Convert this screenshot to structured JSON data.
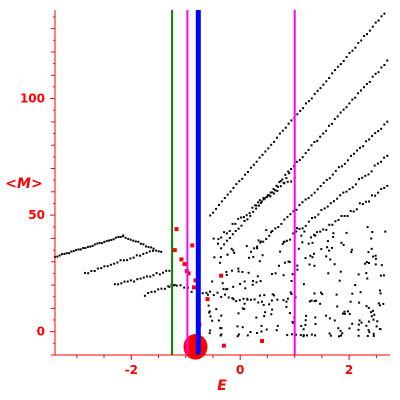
{
  "chart_data": {
    "type": "scatter",
    "title": "",
    "xlabel": "E",
    "ylabel": "<M>",
    "xlim": [
      -3.4,
      2.75
    ],
    "ylim": [
      -10,
      138
    ],
    "x_ticks": [
      -2,
      0,
      2
    ],
    "x_tick_labels": [
      "-2",
      "0",
      "2"
    ],
    "y_ticks": [
      0,
      50,
      100
    ],
    "y_tick_labels": [
      "0",
      "50",
      "100"
    ],
    "grid": false,
    "legend": "none",
    "colors": {
      "axis": "#ff0000",
      "scatter": "#000000",
      "highlight": "#ff0000",
      "green_line": "#008000",
      "magenta_line": "#ff00ff",
      "blue_line": "#0000ff"
    },
    "vertical_lines": [
      {
        "x": -1.25,
        "color": "#008000",
        "width": 2
      },
      {
        "x": -0.97,
        "color": "#ff00ff",
        "width": 2
      },
      {
        "x": -0.77,
        "color": "#0000ff",
        "width": 5
      },
      {
        "x": 1.0,
        "color": "#ff00ff",
        "width": 2
      }
    ],
    "branches": [
      {
        "x_start": -3.4,
        "x_end": -2.15,
        "y_start": 32,
        "y_end": 41,
        "n": 30,
        "noise": 0.3
      },
      {
        "x_start": -2.15,
        "x_end": -1.45,
        "y_start": 41,
        "y_end": 34,
        "n": 16,
        "noise": 0.4
      },
      {
        "x_start": -2.85,
        "x_end": -1.6,
        "y_start": 25,
        "y_end": 35,
        "n": 22,
        "noise": 0.5
      },
      {
        "x_start": -2.3,
        "x_end": -1.3,
        "y_start": 20,
        "y_end": 26,
        "n": 18,
        "noise": 0.6
      },
      {
        "x_start": -1.75,
        "x_end": -1.2,
        "y_start": 16,
        "y_end": 20,
        "n": 10,
        "noise": 0.6
      },
      {
        "x_start": -1.3,
        "x_end": 0.4,
        "y_start": 20,
        "y_end": 12,
        "n": 26,
        "noise": 1.2
      },
      {
        "x_start": -0.55,
        "x_end": 2.7,
        "y_start": 50,
        "y_end": 138,
        "n": 62,
        "noise": 0.4
      },
      {
        "x_start": -0.35,
        "x_end": 2.7,
        "y_start": 36,
        "y_end": 116,
        "n": 58,
        "noise": 0.5
      },
      {
        "x_start": 0.2,
        "x_end": 2.7,
        "y_start": 34,
        "y_end": 90,
        "n": 46,
        "noise": 0.6
      },
      {
        "x_start": 0.8,
        "x_end": 2.7,
        "y_start": 38,
        "y_end": 75,
        "n": 34,
        "noise": 0.8
      },
      {
        "x_start": 1.3,
        "x_end": 2.7,
        "y_start": 40,
        "y_end": 62,
        "n": 26,
        "noise": 1.0
      },
      {
        "x_start": -0.4,
        "x_end": 0.9,
        "y_start": 40,
        "y_end": 67,
        "n": 26,
        "noise": 1.2
      },
      {
        "x_start": 0.3,
        "x_end": 1.0,
        "y_start": 55,
        "y_end": 66,
        "n": 12,
        "noise": 1.0
      }
    ],
    "cloud": {
      "x_range": [
        -0.6,
        2.7
      ],
      "y_range": [
        -2,
        45
      ],
      "n": 240
    },
    "highlight_points": [
      {
        "x": -1.17,
        "y": 44
      },
      {
        "x": -1.2,
        "y": 35
      },
      {
        "x": -1.08,
        "y": 31
      },
      {
        "x": -1.02,
        "y": 29
      },
      {
        "x": -0.98,
        "y": 26
      },
      {
        "x": -0.95,
        "y": 25
      },
      {
        "x": -0.88,
        "y": 37
      },
      {
        "x": -0.85,
        "y": 19
      },
      {
        "x": -0.82,
        "y": 22
      },
      {
        "x": -0.35,
        "y": 24
      },
      {
        "x": -0.75,
        "y": 3
      },
      {
        "x": -0.3,
        "y": -6
      },
      {
        "x": 0.4,
        "y": -4
      },
      {
        "x": -0.6,
        "y": 14
      }
    ],
    "highlight_blob": {
      "x": -0.82,
      "y": -6.5,
      "rx": 0.22,
      "ry": 5.5
    }
  }
}
